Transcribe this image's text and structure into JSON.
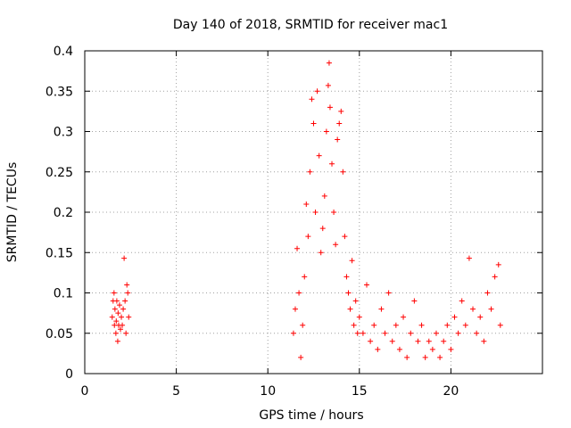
{
  "chart_data": {
    "type": "scatter",
    "title": "Day 140 of 2018, SRMTID for receiver mac1",
    "xlabel": "GPS time / hours",
    "ylabel": "SRMTID / TECUs",
    "xlim": [
      0,
      25
    ],
    "ylim": [
      0,
      0.4
    ],
    "x_ticks": [
      0,
      5,
      10,
      15,
      20
    ],
    "x_tick_labels": [
      "0",
      "5",
      "10",
      "15",
      "20"
    ],
    "y_ticks": [
      0,
      0.05,
      0.1,
      0.15,
      0.2,
      0.25,
      0.3,
      0.35,
      0.4
    ],
    "y_tick_labels": [
      "0",
      "0.05",
      "0.1",
      "0.15",
      "0.2",
      "0.25",
      "0.3",
      "0.35",
      "0.4"
    ],
    "grid": true,
    "marker": "+",
    "color": "#ff0000",
    "series": [
      {
        "name": "SRMTID",
        "points": [
          [
            1.5,
            0.07
          ],
          [
            1.55,
            0.09
          ],
          [
            1.6,
            0.1
          ],
          [
            1.62,
            0.06
          ],
          [
            1.65,
            0.08
          ],
          [
            1.7,
            0.05
          ],
          [
            1.72,
            0.065
          ],
          [
            1.75,
            0.09
          ],
          [
            1.8,
            0.04
          ],
          [
            1.82,
            0.075
          ],
          [
            1.85,
            0.06
          ],
          [
            1.9,
            0.085
          ],
          [
            1.95,
            0.055
          ],
          [
            2.0,
            0.07
          ],
          [
            2.05,
            0.06
          ],
          [
            2.1,
            0.08
          ],
          [
            2.15,
            0.143
          ],
          [
            2.2,
            0.09
          ],
          [
            2.25,
            0.05
          ],
          [
            2.3,
            0.11
          ],
          [
            2.35,
            0.1
          ],
          [
            2.4,
            0.07
          ],
          [
            11.4,
            0.05
          ],
          [
            11.5,
            0.08
          ],
          [
            11.6,
            0.155
          ],
          [
            11.7,
            0.1
          ],
          [
            11.8,
            0.02
          ],
          [
            11.9,
            0.06
          ],
          [
            12.0,
            0.12
          ],
          [
            12.1,
            0.21
          ],
          [
            12.2,
            0.17
          ],
          [
            12.3,
            0.25
          ],
          [
            12.4,
            0.34
          ],
          [
            12.5,
            0.31
          ],
          [
            12.6,
            0.2
          ],
          [
            12.7,
            0.35
          ],
          [
            12.8,
            0.27
          ],
          [
            12.9,
            0.15
          ],
          [
            13.0,
            0.18
          ],
          [
            13.1,
            0.22
          ],
          [
            13.2,
            0.3
          ],
          [
            13.3,
            0.357
          ],
          [
            13.35,
            0.385
          ],
          [
            13.4,
            0.33
          ],
          [
            13.5,
            0.26
          ],
          [
            13.6,
            0.2
          ],
          [
            13.7,
            0.16
          ],
          [
            13.8,
            0.29
          ],
          [
            13.9,
            0.31
          ],
          [
            14.0,
            0.325
          ],
          [
            14.1,
            0.25
          ],
          [
            14.2,
            0.17
          ],
          [
            14.3,
            0.12
          ],
          [
            14.4,
            0.1
          ],
          [
            14.5,
            0.08
          ],
          [
            14.6,
            0.14
          ],
          [
            14.7,
            0.06
          ],
          [
            14.8,
            0.09
          ],
          [
            14.9,
            0.05
          ],
          [
            15.0,
            0.07
          ],
          [
            15.2,
            0.05
          ],
          [
            15.4,
            0.11
          ],
          [
            15.6,
            0.04
          ],
          [
            15.8,
            0.06
          ],
          [
            16.0,
            0.03
          ],
          [
            16.2,
            0.08
          ],
          [
            16.4,
            0.05
          ],
          [
            16.6,
            0.1
          ],
          [
            16.8,
            0.04
          ],
          [
            17.0,
            0.06
          ],
          [
            17.2,
            0.03
          ],
          [
            17.4,
            0.07
          ],
          [
            17.6,
            0.02
          ],
          [
            17.8,
            0.05
          ],
          [
            18.0,
            0.09
          ],
          [
            18.2,
            0.04
          ],
          [
            18.4,
            0.06
          ],
          [
            18.6,
            0.02
          ],
          [
            18.8,
            0.04
          ],
          [
            19.0,
            0.03
          ],
          [
            19.2,
            0.05
          ],
          [
            19.4,
            0.02
          ],
          [
            19.6,
            0.04
          ],
          [
            19.8,
            0.06
          ],
          [
            20.0,
            0.03
          ],
          [
            20.2,
            0.07
          ],
          [
            20.4,
            0.05
          ],
          [
            20.6,
            0.09
          ],
          [
            20.8,
            0.06
          ],
          [
            21.0,
            0.143
          ],
          [
            21.2,
            0.08
          ],
          [
            21.4,
            0.05
          ],
          [
            21.6,
            0.07
          ],
          [
            21.8,
            0.04
          ],
          [
            22.0,
            0.1
          ],
          [
            22.2,
            0.08
          ],
          [
            22.4,
            0.12
          ],
          [
            22.6,
            0.135
          ],
          [
            22.7,
            0.06
          ]
        ]
      }
    ]
  }
}
